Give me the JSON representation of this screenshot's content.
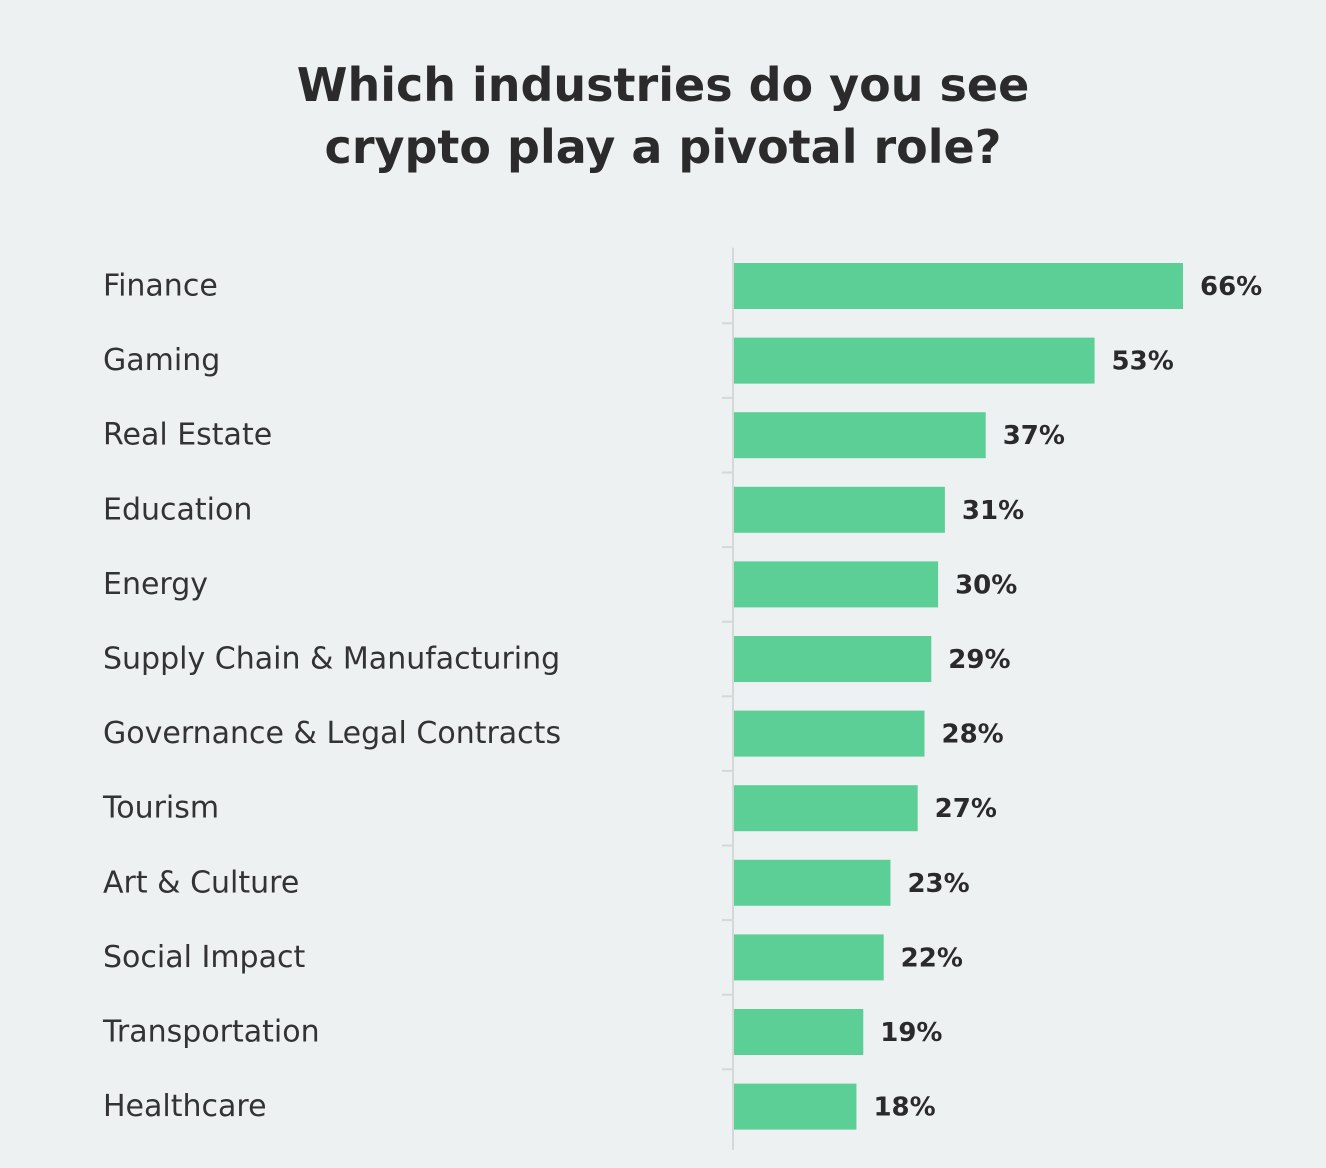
{
  "chart_data": {
    "type": "bar",
    "orientation": "horizontal",
    "title_lines": [
      "Which industries do you see",
      "crypto play a pivotal role?"
    ],
    "categories": [
      "Finance",
      "Gaming",
      "Real Estate",
      "Education",
      "Energy",
      "Supply Chain & Manufacturing",
      "Governance & Legal Contracts",
      "Tourism",
      "Art & Culture",
      "Social Impact",
      "Transportation",
      "Healthcare"
    ],
    "values": [
      66,
      53,
      37,
      31,
      30,
      29,
      28,
      27,
      23,
      22,
      19,
      18
    ],
    "value_labels": [
      "66%",
      "53%",
      "37%",
      "31%",
      "30%",
      "29%",
      "28%",
      "27%",
      "23%",
      "22%",
      "19%",
      "18%"
    ],
    "unit": "%",
    "xlim": [
      0,
      66
    ],
    "grid": false,
    "legend": "none",
    "colors": {
      "bar": "#5ccf96",
      "background": "#edf1f1",
      "axis": "#d4d8d8"
    }
  }
}
